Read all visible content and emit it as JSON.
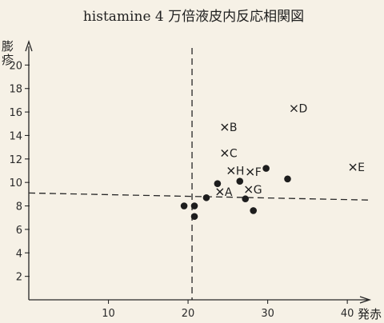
{
  "chart_data": {
    "type": "scatter",
    "title": "histamine 4 万倍液皮内反応相関図",
    "xlabel": "発赤",
    "ylabel": "膨疹",
    "xlim": [
      0,
      43
    ],
    "ylim": [
      0,
      22
    ],
    "x_ticks": [
      10,
      20,
      30,
      40
    ],
    "y_ticks": [
      2,
      4,
      6,
      8,
      10,
      12,
      14,
      16,
      18,
      20
    ],
    "reference_lines": {
      "vertical_x": 20.5,
      "horizontal": {
        "y_start": 9.1,
        "y_end": 8.5
      }
    },
    "series": [
      {
        "marker": "dot",
        "points": [
          {
            "x": 19.5,
            "y": 8.0
          },
          {
            "x": 20.8,
            "y": 7.1
          },
          {
            "x": 20.8,
            "y": 8.0
          },
          {
            "x": 22.3,
            "y": 8.7
          },
          {
            "x": 23.7,
            "y": 9.9
          },
          {
            "x": 26.5,
            "y": 10.1
          },
          {
            "x": 27.2,
            "y": 8.6
          },
          {
            "x": 28.2,
            "y": 7.6
          },
          {
            "x": 29.8,
            "y": 11.2
          },
          {
            "x": 32.5,
            "y": 10.3
          }
        ]
      },
      {
        "marker": "cross",
        "points": [
          {
            "label": "A",
            "x": 24.0,
            "y": 9.2
          },
          {
            "label": "B",
            "x": 24.6,
            "y": 14.7
          },
          {
            "label": "C",
            "x": 24.6,
            "y": 12.5
          },
          {
            "label": "D",
            "x": 33.3,
            "y": 16.3
          },
          {
            "label": "E",
            "x": 40.7,
            "y": 11.3
          },
          {
            "label": "F",
            "x": 27.8,
            "y": 10.9
          },
          {
            "label": "G",
            "x": 27.6,
            "y": 9.4
          },
          {
            "label": "H",
            "x": 25.4,
            "y": 11.0
          }
        ]
      }
    ]
  }
}
